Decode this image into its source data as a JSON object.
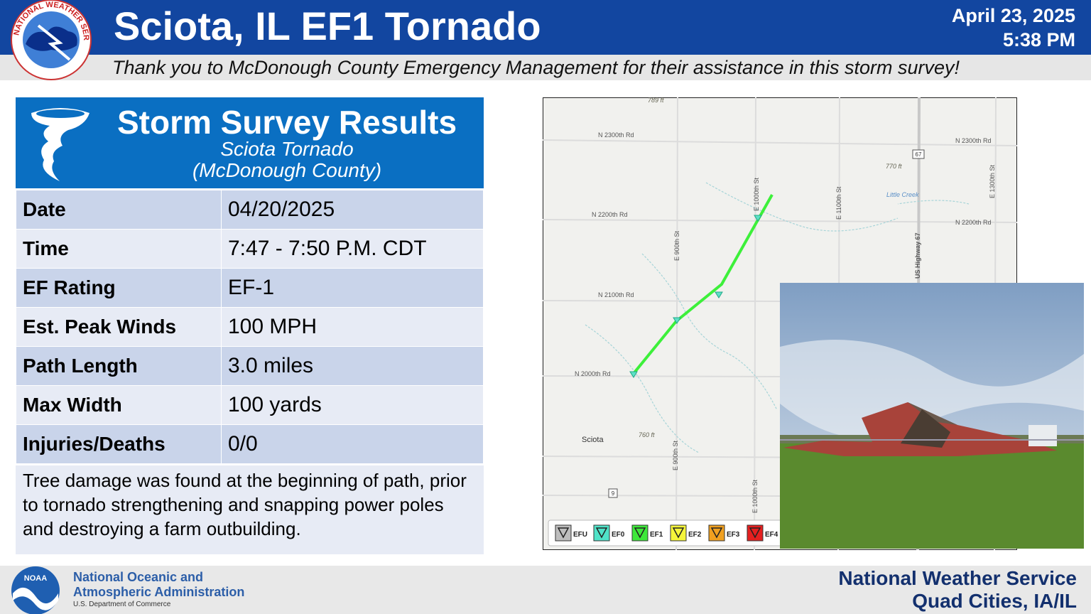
{
  "header": {
    "title": "Sciota, IL EF1 Tornado",
    "date": "April 23, 2025",
    "time": "5:38 PM",
    "subtitle": "Thank you to McDonough County Emergency Management for their assistance in this storm survey!",
    "logo_text": "NATIONAL WEATHER SERVICE"
  },
  "survey": {
    "title": "Storm Survey Results",
    "name": "Sciota Tornado",
    "county": "(McDonough County)",
    "rows": [
      [
        "Date",
        "04/20/2025"
      ],
      [
        "Time",
        "7:47 - 7:50 P.M. CDT"
      ],
      [
        "EF Rating",
        "EF-1"
      ],
      [
        "Est. Peak Winds",
        "100 MPH"
      ],
      [
        "Path Length",
        "3.0 miles"
      ],
      [
        "Max Width",
        "100 yards"
      ],
      [
        "Injuries/Deaths",
        "0/0"
      ]
    ],
    "note": "Tree damage was found at the beginning of path, prior to tornado strengthening and snapping power poles and destroying a farm outbuilding."
  },
  "map": {
    "labels": [
      "N 2300th Rd",
      "N 2300th Rd",
      "N 2200th Rd",
      "N 2200th Rd",
      "N 2100th Rd",
      "N 2000th Rd",
      "Sciota",
      "770 ft",
      "760 ft",
      "789 ft",
      "Little Creek",
      "E 900th St",
      "E 900th St",
      "E 1000th St",
      "E 1000th St",
      "E 1100th St",
      "E 1300th St",
      "US Highway 67",
      "67",
      "9"
    ],
    "legend": [
      "EFU",
      "EF0",
      "EF1",
      "EF2",
      "EF3",
      "EF4"
    ]
  },
  "footer": {
    "noaa_badge": "NOAA",
    "noaa_name_1": "National Oceanic and",
    "noaa_name_2": "Atmospheric Administration",
    "noaa_dept": "U.S. Department of Commerce",
    "nws_1": "National Weather Service",
    "nws_2": "Quad Cities, IA/IL"
  }
}
